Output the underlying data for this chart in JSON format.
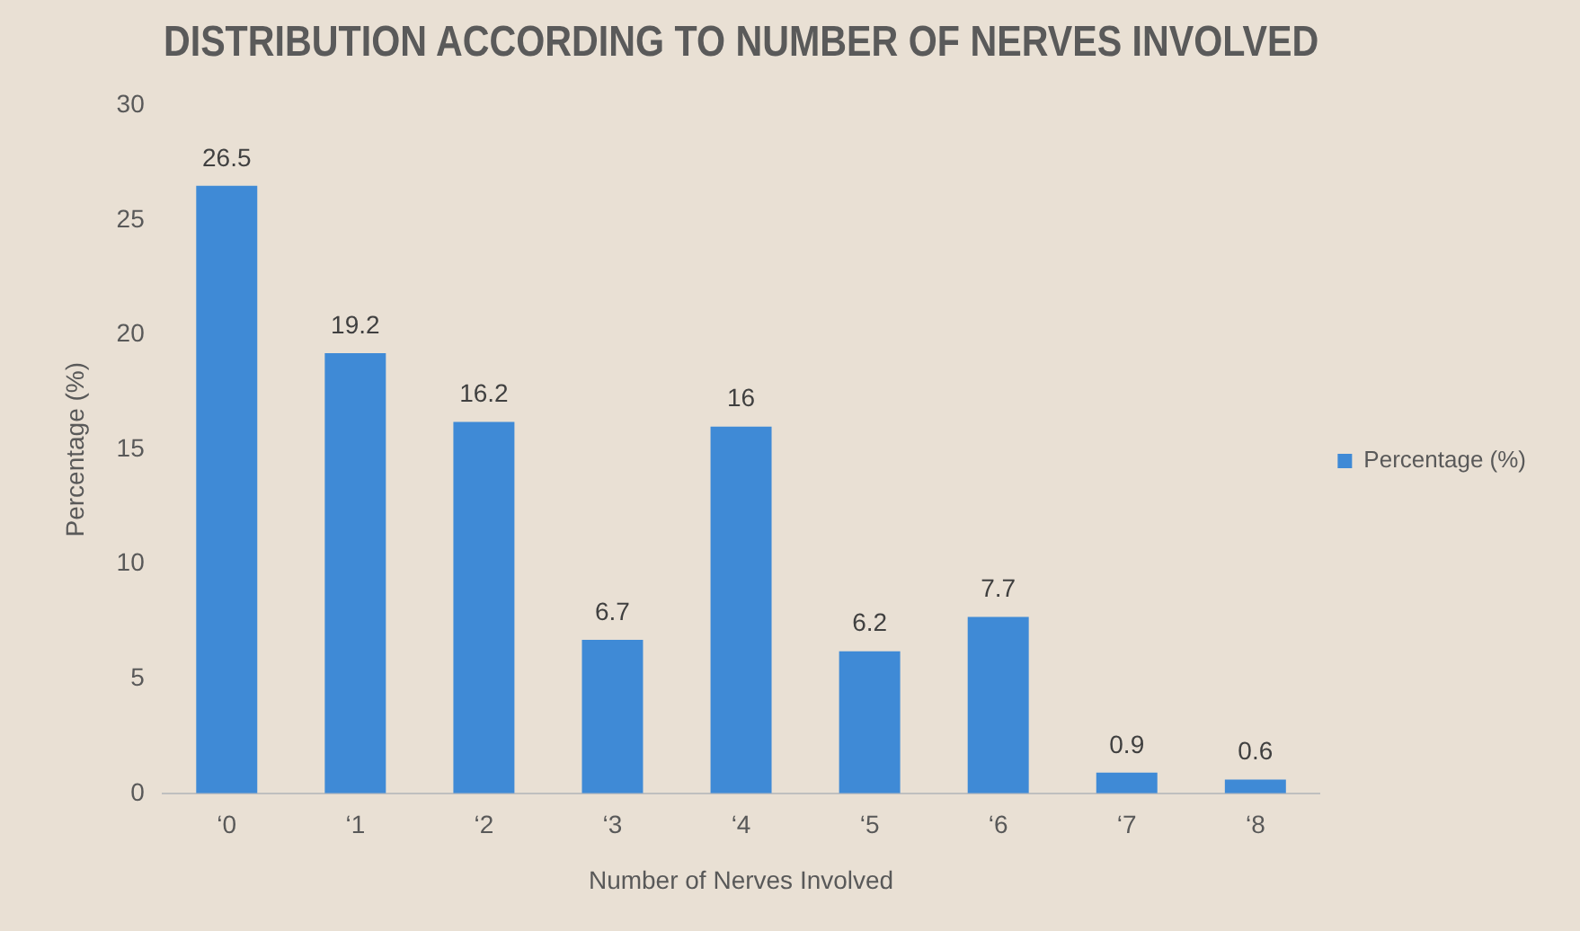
{
  "chart_data": {
    "type": "bar",
    "title": "DISTRIBUTION ACCORDING TO NUMBER OF NERVES INVOLVED",
    "xlabel": "Number of Nerves Involved",
    "ylabel": "Percentage (%)",
    "categories": [
      "‘0",
      "‘1",
      "‘2",
      "‘3",
      "‘4",
      "‘5",
      "‘6",
      "‘7",
      "‘8"
    ],
    "series": [
      {
        "name": "Percentage (%)",
        "color": "#3f8ad6",
        "values": [
          26.5,
          19.2,
          16.2,
          6.7,
          16,
          6.2,
          7.7,
          0.9,
          0.6
        ]
      }
    ],
    "ylim": [
      0,
      30
    ],
    "yticks": [
      0,
      5,
      10,
      15,
      20,
      25,
      30
    ],
    "grid": false,
    "legend": "right",
    "data_labels": true
  }
}
